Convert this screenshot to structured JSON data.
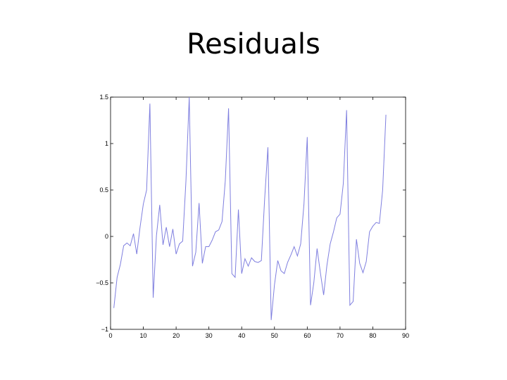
{
  "slide": {
    "title": "Residuals"
  },
  "chart_data": {
    "type": "line",
    "title": "Residuals",
    "xlabel": "",
    "ylabel": "",
    "xlim": [
      0,
      90
    ],
    "ylim": [
      -1,
      1.5
    ],
    "xticks": [
      0,
      10,
      20,
      30,
      40,
      50,
      60,
      70,
      80,
      90
    ],
    "xtick_labels": [
      "0",
      "10",
      "20",
      "30",
      "40",
      "50",
      "60",
      "70",
      "80",
      "90"
    ],
    "yticks": [
      -1,
      -0.5,
      0,
      0.5,
      1,
      1.5
    ],
    "ytick_labels": [
      "−1",
      "−0.5",
      "0",
      "0.5",
      "1",
      "1.5"
    ],
    "grid": false,
    "legend": "none",
    "series": [
      {
        "color": "#7f7fdf",
        "x": [
          1,
          2,
          3,
          4,
          5,
          6,
          7,
          8,
          9,
          10,
          11,
          12,
          13,
          14,
          15,
          16,
          17,
          18,
          19,
          20,
          21,
          22,
          23,
          24,
          25,
          26,
          27,
          28,
          29,
          30,
          31,
          32,
          33,
          34,
          35,
          36,
          37,
          38,
          39,
          40,
          41,
          42,
          43,
          44,
          45,
          46,
          47,
          48,
          49,
          50,
          51,
          52,
          53,
          54,
          55,
          56,
          57,
          58,
          59,
          60,
          61,
          62,
          63,
          64,
          65,
          66,
          67,
          68,
          69,
          70,
          71,
          72,
          73,
          74,
          75,
          76,
          77,
          78,
          79,
          80,
          81,
          82,
          83,
          84
        ],
        "y": [
          -0.77,
          -0.44,
          -0.3,
          -0.1,
          -0.07,
          -0.1,
          0.03,
          -0.19,
          0.1,
          0.35,
          0.5,
          1.43,
          -0.66,
          0.01,
          0.34,
          -0.09,
          0.1,
          -0.11,
          0.08,
          -0.19,
          -0.08,
          -0.05,
          0.6,
          1.5,
          -0.32,
          -0.17,
          0.36,
          -0.29,
          -0.11,
          -0.11,
          -0.04,
          0.05,
          0.07,
          0.16,
          0.6,
          1.38,
          -0.4,
          -0.44,
          0.29,
          -0.4,
          -0.24,
          -0.32,
          -0.23,
          -0.27,
          -0.28,
          -0.26,
          0.4,
          0.96,
          -0.9,
          -0.52,
          -0.26,
          -0.37,
          -0.4,
          -0.28,
          -0.2,
          -0.11,
          -0.21,
          -0.08,
          0.35,
          1.07,
          -0.74,
          -0.5,
          -0.13,
          -0.39,
          -0.63,
          -0.31,
          -0.08,
          0.05,
          0.2,
          0.24,
          0.57,
          1.36,
          -0.74,
          -0.7,
          -0.03,
          -0.29,
          -0.39,
          -0.27,
          0.05,
          0.11,
          0.15,
          0.14,
          0.5,
          1.31
        ]
      }
    ]
  }
}
